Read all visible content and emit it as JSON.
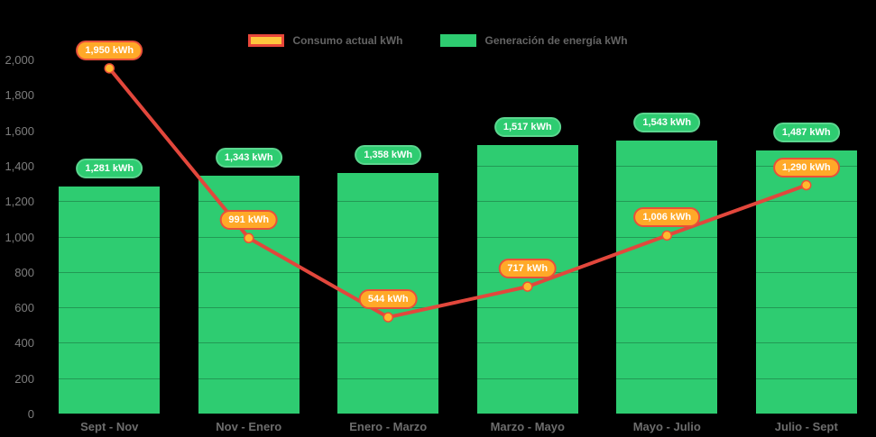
{
  "legend": {
    "consumo_label": "Consumo actual kWh",
    "generacion_label": "Generación de energía kWh"
  },
  "colors": {
    "background": "#000000",
    "bar_fill": "#2ecc71",
    "bar_badge_border": "#5bd68f",
    "line_stroke": "#e2473c",
    "marker_fill": "#ffb92e",
    "marker_border": "#ed4f38",
    "line_badge_fill": "#ffa928",
    "line_badge_border": "#e8503a",
    "legend_swatch_consumo_fill": "#ffc53d",
    "legend_swatch_consumo_border": "#e8473a",
    "axis_text": "#7d7d7d"
  },
  "chart_data": {
    "type": "combo-bar-line",
    "title": "",
    "xlabel": "",
    "ylabel": "",
    "background": "black",
    "grid": "subtle horizontal, visible only over bars",
    "legend_position": "top-center",
    "categories": [
      "Sept - Nov",
      "Nov - Enero",
      "Enero - Marzo",
      "Marzo - Mayo",
      "Mayo - Julio",
      "Julio - Sept"
    ],
    "series": [
      {
        "name": "Generación de energía kWh",
        "type": "bar",
        "color": "#2ecc71",
        "values": [
          1281,
          1343,
          1358,
          1517,
          1543,
          1487
        ],
        "labels": [
          "1,281 kWh",
          "1,343 kWh",
          "1,358 kWh",
          "1,517 kWh",
          "1,543 kWh",
          "1,487 kWh"
        ]
      },
      {
        "name": "Consumo actual kWh",
        "type": "line",
        "color": "#e2473c",
        "marker_color": "#ffb92e",
        "values": [
          1950,
          991,
          544,
          717,
          1006,
          1290
        ],
        "labels": [
          "1,950 kWh",
          "991 kWh",
          "544 kWh",
          "717 kWh",
          "1,006 kWh",
          "1,290 kWh"
        ]
      }
    ],
    "y_axis": {
      "min": 0,
      "max": 2000,
      "step": 200,
      "tick_labels": [
        "0",
        "200",
        "400",
        "600",
        "800",
        "1,000",
        "1,200",
        "1,400",
        "1,600",
        "1,800",
        "2,000"
      ]
    }
  }
}
